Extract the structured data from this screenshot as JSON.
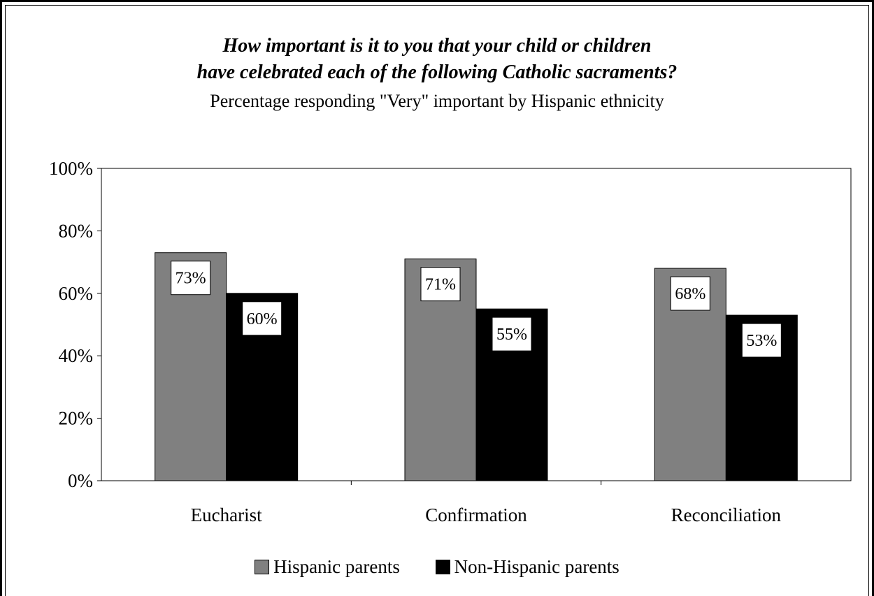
{
  "title_line_1": "How important is it to you that your child or children",
  "title_line_2": "have celebrated each of the following Catholic sacraments?",
  "subtitle": "Percentage responding \"Very\" important by Hispanic ethnicity",
  "chart_data": {
    "type": "bar",
    "categories": [
      "Eucharist",
      "Confirmation",
      "Reconciliation"
    ],
    "series": [
      {
        "name": "Hispanic parents",
        "values": [
          73,
          71,
          68
        ],
        "labels": [
          "73%",
          "71%",
          "68%"
        ],
        "color": "#808080"
      },
      {
        "name": "Non-Hispanic parents",
        "values": [
          60,
          55,
          53
        ],
        "labels": [
          "60%",
          "55%",
          "53%"
        ],
        "color": "#000000"
      }
    ],
    "ylim": [
      0,
      100
    ],
    "yticks": [
      0,
      20,
      40,
      60,
      80,
      100
    ],
    "ytick_labels": [
      "0%",
      "20%",
      "40%",
      "60%",
      "80%",
      "100%"
    ],
    "xlabel": "",
    "ylabel": "",
    "grid": false,
    "legend_position": "bottom"
  }
}
